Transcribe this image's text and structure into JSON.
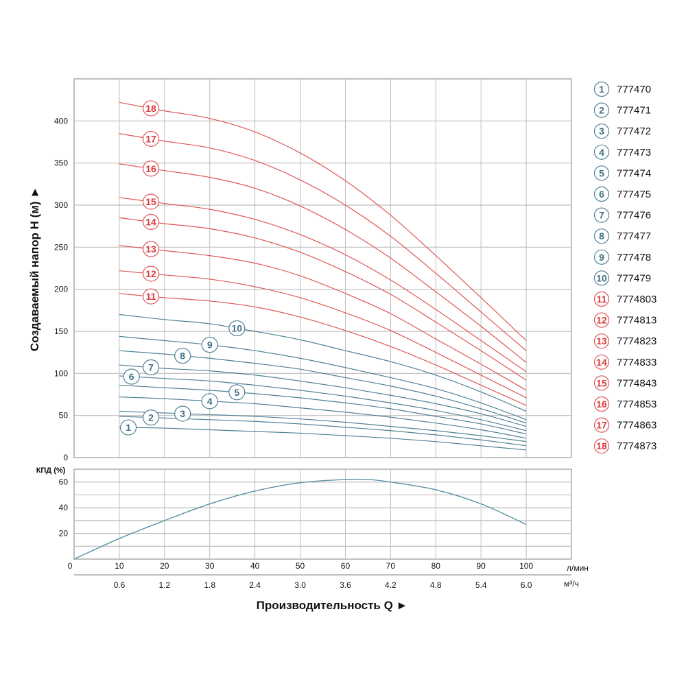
{
  "chart_data": [
    {
      "type": "line",
      "ylabel": "Создаваемый напор H (м) ►",
      "xlabel": "Производительность Q ►",
      "x_unit_primary": "л/мин",
      "x_unit_secondary": "м³/ч",
      "xlim": [
        0,
        110
      ],
      "ylim": [
        0,
        450
      ],
      "grid": true,
      "legend_placement": "right",
      "x": [
        10,
        20,
        30,
        40,
        50,
        60,
        70,
        80,
        90,
        100
      ],
      "x_ticks": [
        "0",
        "10",
        "20",
        "30",
        "40",
        "50",
        "60",
        "70",
        "80",
        "90",
        "100"
      ],
      "x_ticks_secondary": [
        "0.6",
        "1.2",
        "1.8",
        "2.4",
        "3.0",
        "3.6",
        "4.2",
        "4.8",
        "5.4",
        "6.0"
      ],
      "y_ticks": [
        "0",
        "50",
        "100",
        "150",
        "200",
        "250",
        "300",
        "350",
        "400"
      ],
      "colors": {
        "blue": "#4f8196",
        "red": "#e05555",
        "blue_text": "#3f7285",
        "red_text": "#e03a3a",
        "grid": "#bdbdbd"
      },
      "series": [
        {
          "name": "1",
          "model": "777470",
          "color": "blue",
          "values": [
            36,
            35,
            33,
            31,
            29,
            26,
            23,
            19,
            14,
            9
          ]
        },
        {
          "name": "2",
          "model": "777471",
          "color": "blue",
          "values": [
            49,
            47,
            45,
            43,
            40,
            36,
            32,
            27,
            21,
            14
          ]
        },
        {
          "name": "3",
          "model": "777472",
          "color": "blue",
          "values": [
            55,
            53,
            51,
            49,
            46,
            42,
            37,
            32,
            26,
            19
          ]
        },
        {
          "name": "4",
          "model": "777473",
          "color": "blue",
          "values": [
            72,
            70,
            67,
            64,
            59,
            54,
            48,
            41,
            33,
            23
          ]
        },
        {
          "name": "5",
          "model": "777474",
          "color": "blue",
          "values": [
            86,
            83,
            80,
            76,
            71,
            65,
            58,
            49,
            40,
            28
          ]
        },
        {
          "name": "6",
          "model": "777475",
          "color": "blue",
          "values": [
            97,
            94,
            91,
            86,
            80,
            73,
            65,
            56,
            45,
            32
          ]
        },
        {
          "name": "7",
          "model": "777476",
          "color": "blue",
          "values": [
            110,
            106,
            103,
            98,
            91,
            83,
            74,
            64,
            52,
            37
          ]
        },
        {
          "name": "8",
          "model": "777477",
          "color": "blue",
          "values": [
            127,
            123,
            118,
            112,
            105,
            95,
            85,
            73,
            58,
            41
          ]
        },
        {
          "name": "9",
          "model": "777478",
          "color": "blue",
          "values": [
            144,
            139,
            134,
            127,
            118,
            107,
            95,
            82,
            65,
            45
          ]
        },
        {
          "name": "10",
          "model": "777479",
          "color": "blue",
          "values": [
            170,
            164,
            159,
            150,
            140,
            127,
            114,
            98,
            78,
            55
          ]
        },
        {
          "name": "11",
          "model": "7774803",
          "color": "red",
          "values": [
            195,
            190,
            186,
            179,
            167,
            151,
            132,
            110,
            86,
            62
          ]
        },
        {
          "name": "12",
          "model": "7774813",
          "color": "red",
          "values": [
            222,
            217,
            212,
            203,
            190,
            172,
            151,
            125,
            98,
            71
          ]
        },
        {
          "name": "13",
          "model": "7774823",
          "color": "red",
          "values": [
            252,
            246,
            240,
            231,
            216,
            195,
            171,
            141,
            111,
            80
          ]
        },
        {
          "name": "14",
          "model": "7774833",
          "color": "red",
          "values": [
            285,
            278,
            272,
            261,
            244,
            221,
            194,
            161,
            127,
            92
          ]
        },
        {
          "name": "15",
          "model": "7774843",
          "color": "red",
          "values": [
            309,
            302,
            295,
            283,
            265,
            241,
            211,
            176,
            139,
            102
          ]
        },
        {
          "name": "16",
          "model": "7774853",
          "color": "red",
          "values": [
            349,
            341,
            333,
            320,
            299,
            271,
            237,
            197,
            156,
            113
          ]
        },
        {
          "name": "17",
          "model": "7774863",
          "color": "red",
          "values": [
            385,
            376,
            368,
            353,
            330,
            300,
            263,
            219,
            173,
            127
          ]
        },
        {
          "name": "18",
          "model": "7774873",
          "color": "red",
          "values": [
            422,
            412,
            403,
            387,
            362,
            329,
            288,
            240,
            190,
            139
          ]
        }
      ]
    },
    {
      "type": "line",
      "ylabel": "КПД (%)",
      "xlim": [
        0,
        110
      ],
      "ylim": [
        0,
        70
      ],
      "grid": true,
      "y_ticks": [
        "20",
        "40",
        "60"
      ],
      "color": "#5a8fa6",
      "x": [
        0,
        10,
        20,
        30,
        40,
        50,
        60,
        65,
        70,
        80,
        90,
        100
      ],
      "values": [
        0,
        16,
        30,
        43,
        53,
        59.5,
        62,
        62,
        60,
        54,
        43,
        27
      ]
    }
  ]
}
